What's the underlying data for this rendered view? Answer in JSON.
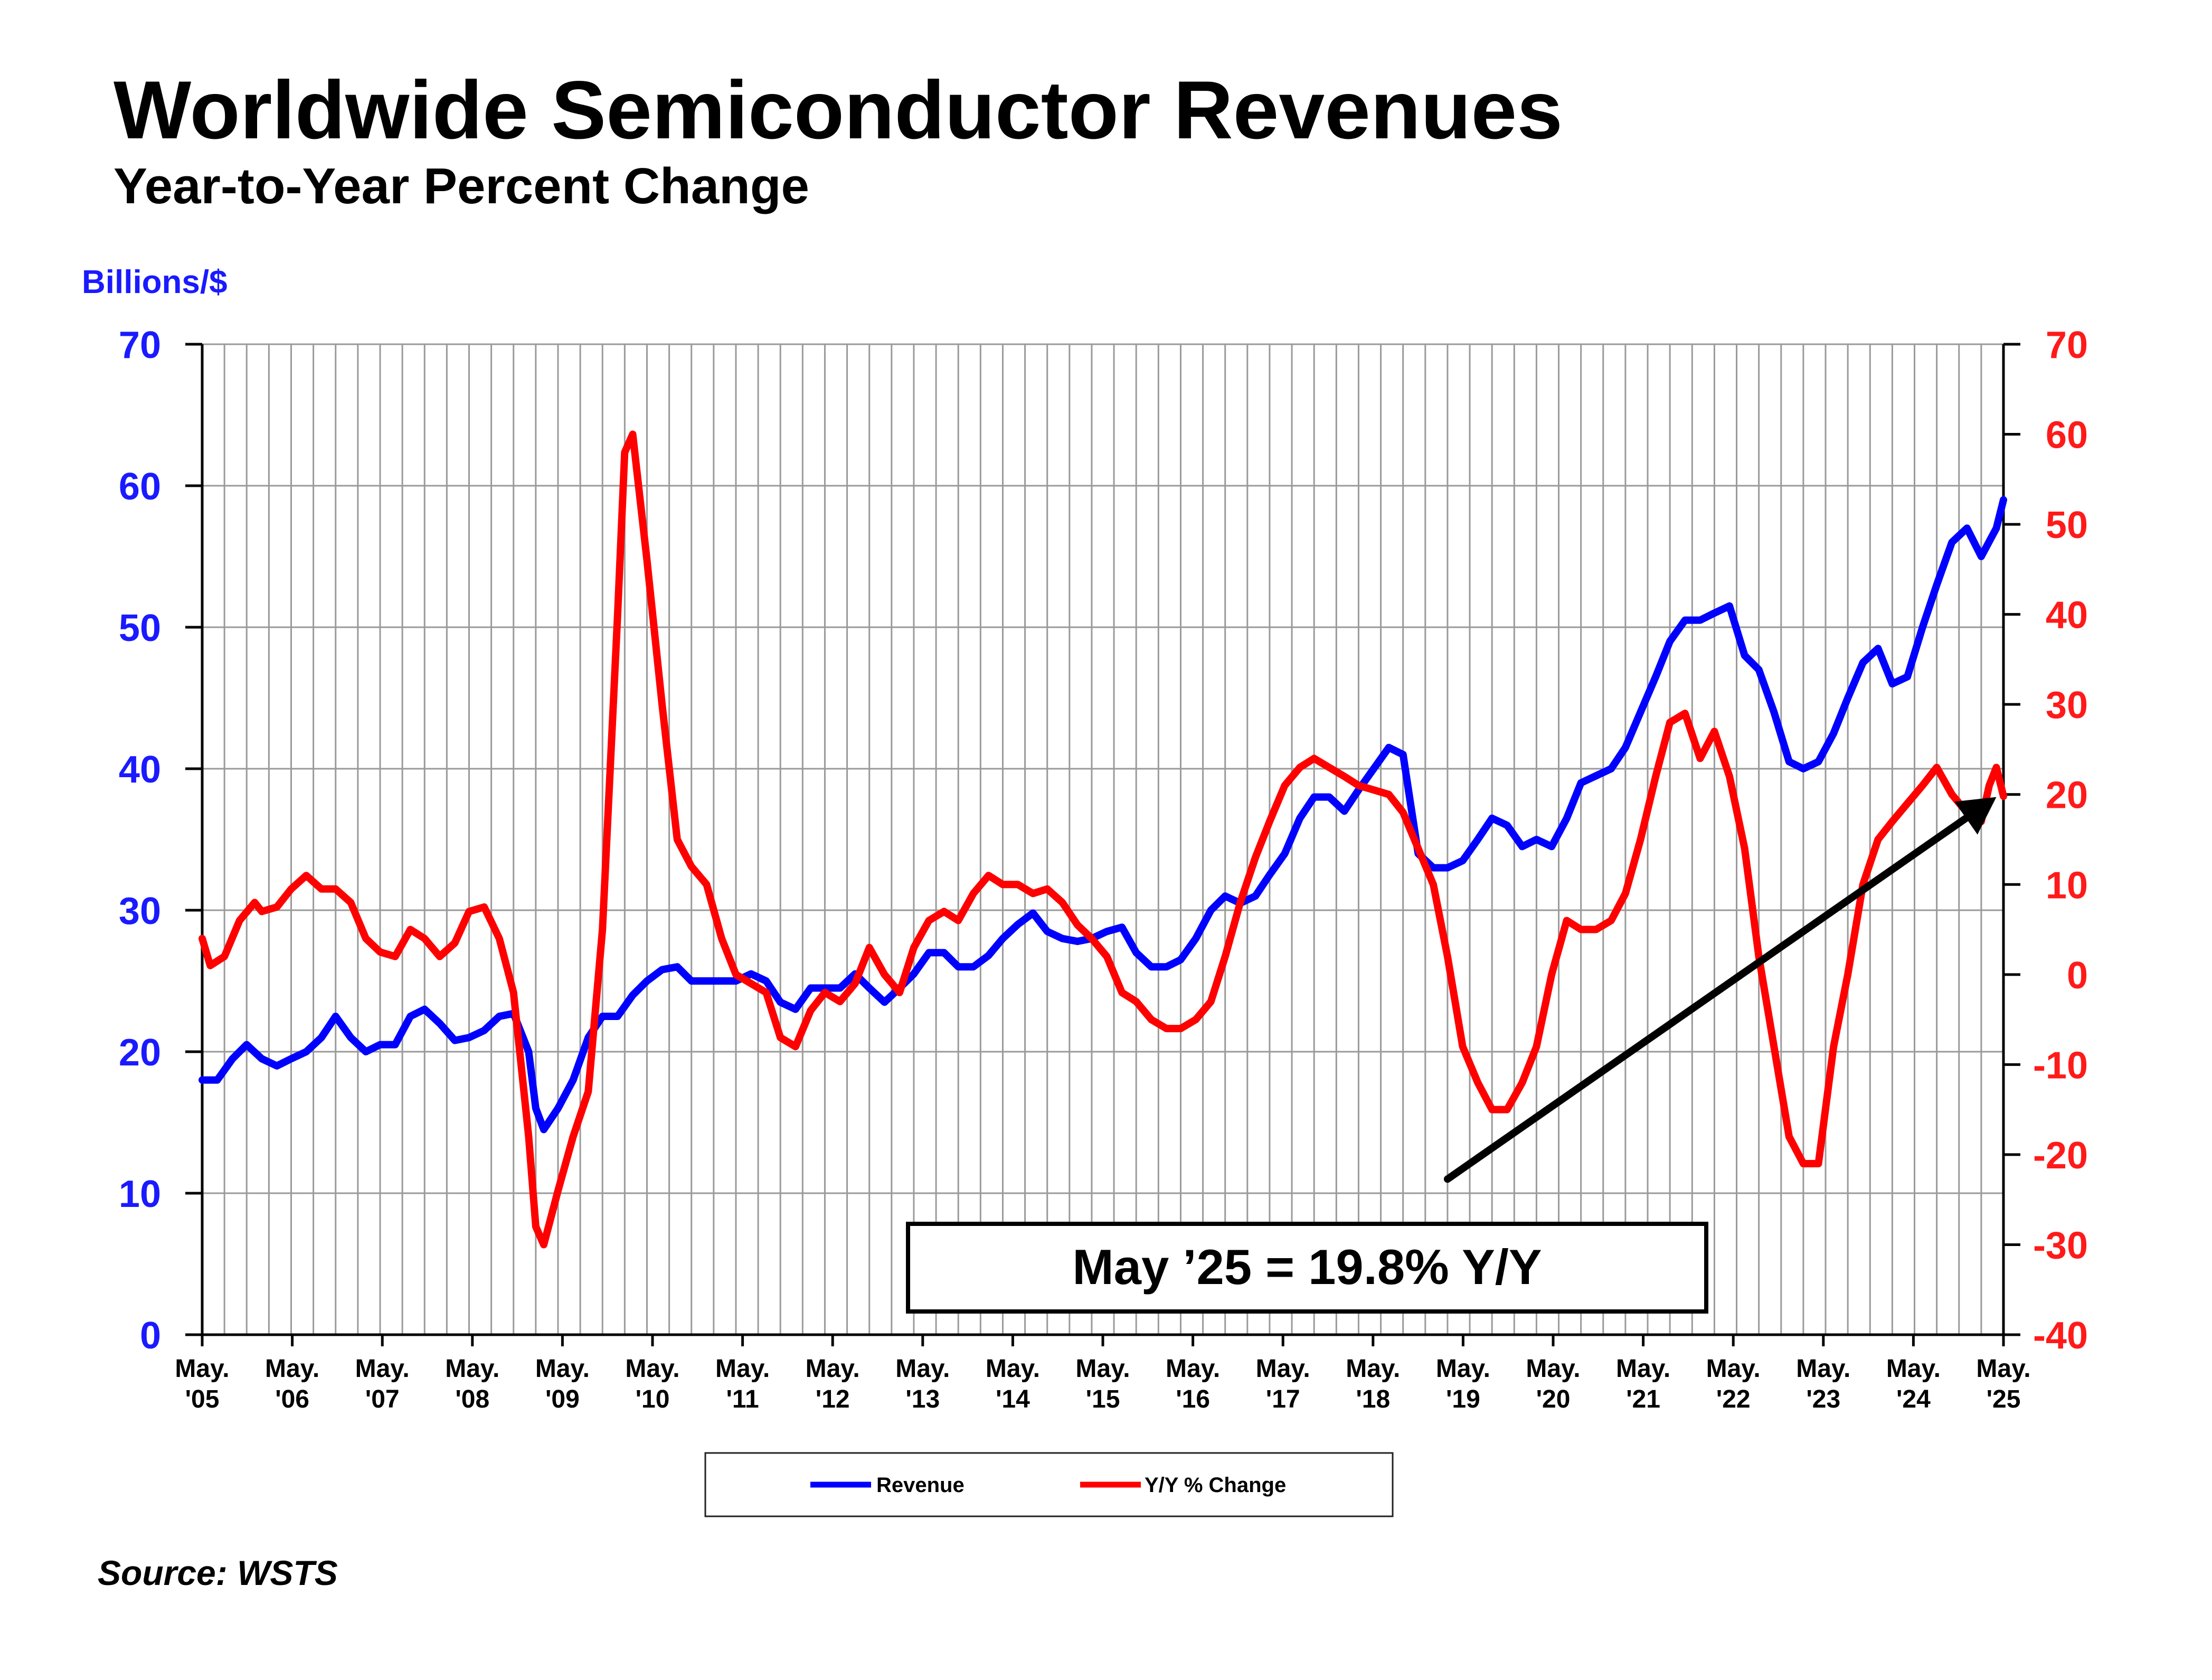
{
  "chart_data": {
    "type": "line",
    "title": "Worldwide Semiconductor Revenues",
    "subtitle": "Year-to-Year Percent Change",
    "ylabel_left": "Billions/$",
    "ylim_left": [
      0,
      70
    ],
    "ylim_right": [
      -40,
      70
    ],
    "yticks_left": [
      "0",
      "10",
      "20",
      "30",
      "40",
      "50",
      "60",
      "70"
    ],
    "yticks_right": [
      "-40",
      "-30",
      "-20",
      "-10",
      "0",
      "10",
      "20",
      "30",
      "40",
      "50",
      "60",
      "70"
    ],
    "grid": true,
    "x_start": "May 2005",
    "x_end": "May 2025",
    "xticks": [
      {
        "month": "May.",
        "year": "'05"
      },
      {
        "month": "May.",
        "year": "'06"
      },
      {
        "month": "May.",
        "year": "'07"
      },
      {
        "month": "May.",
        "year": "'08"
      },
      {
        "month": "May.",
        "year": "'09"
      },
      {
        "month": "May.",
        "year": "'10"
      },
      {
        "month": "May.",
        "year": "'11"
      },
      {
        "month": "May.",
        "year": "'12"
      },
      {
        "month": "May.",
        "year": "'13"
      },
      {
        "month": "May.",
        "year": "'14"
      },
      {
        "month": "May.",
        "year": "'15"
      },
      {
        "month": "May.",
        "year": "'16"
      },
      {
        "month": "May.",
        "year": "'17"
      },
      {
        "month": "May.",
        "year": "'18"
      },
      {
        "month": "May.",
        "year": "'19"
      },
      {
        "month": "May.",
        "year": "'20"
      },
      {
        "month": "May.",
        "year": "'21"
      },
      {
        "month": "May.",
        "year": "'22"
      },
      {
        "month": "May.",
        "year": "'23"
      },
      {
        "month": "May.",
        "year": "'24"
      },
      {
        "month": "May.",
        "year": "'25"
      }
    ],
    "series": [
      {
        "name": "Revenue",
        "axis": "left",
        "color": "#0000ff",
        "points": [
          [
            2005.33,
            18.0
          ],
          [
            2005.5,
            18.0
          ],
          [
            2005.67,
            19.5
          ],
          [
            2005.83,
            20.5
          ],
          [
            2006.0,
            19.5
          ],
          [
            2006.17,
            19.0
          ],
          [
            2006.33,
            19.5
          ],
          [
            2006.5,
            20.0
          ],
          [
            2006.67,
            21.0
          ],
          [
            2006.83,
            22.5
          ],
          [
            2007.0,
            21.0
          ],
          [
            2007.17,
            20.0
          ],
          [
            2007.33,
            20.5
          ],
          [
            2007.5,
            20.5
          ],
          [
            2007.67,
            22.5
          ],
          [
            2007.83,
            23.0
          ],
          [
            2008.0,
            22.0
          ],
          [
            2008.17,
            20.8
          ],
          [
            2008.33,
            21.0
          ],
          [
            2008.5,
            21.5
          ],
          [
            2008.67,
            22.5
          ],
          [
            2008.83,
            22.7
          ],
          [
            2009.0,
            20.0
          ],
          [
            2009.08,
            16.0
          ],
          [
            2009.17,
            14.5
          ],
          [
            2009.33,
            16.0
          ],
          [
            2009.5,
            18.0
          ],
          [
            2009.67,
            21.0
          ],
          [
            2009.83,
            22.5
          ],
          [
            2010.0,
            22.5
          ],
          [
            2010.17,
            24.0
          ],
          [
            2010.33,
            25.0
          ],
          [
            2010.5,
            25.8
          ],
          [
            2010.67,
            26.0
          ],
          [
            2010.83,
            25.0
          ],
          [
            2011.0,
            25.0
          ],
          [
            2011.17,
            25.0
          ],
          [
            2011.33,
            25.0
          ],
          [
            2011.5,
            25.5
          ],
          [
            2011.67,
            25.0
          ],
          [
            2011.83,
            23.5
          ],
          [
            2012.0,
            23.0
          ],
          [
            2012.17,
            24.5
          ],
          [
            2012.33,
            24.5
          ],
          [
            2012.5,
            24.5
          ],
          [
            2012.67,
            25.5
          ],
          [
            2012.83,
            24.5
          ],
          [
            2013.0,
            23.5
          ],
          [
            2013.17,
            24.5
          ],
          [
            2013.33,
            25.5
          ],
          [
            2013.5,
            27.0
          ],
          [
            2013.67,
            27.0
          ],
          [
            2013.83,
            26.0
          ],
          [
            2014.0,
            26.0
          ],
          [
            2014.17,
            26.8
          ],
          [
            2014.33,
            28.0
          ],
          [
            2014.5,
            29.0
          ],
          [
            2014.67,
            29.8
          ],
          [
            2014.83,
            28.5
          ],
          [
            2015.0,
            28.0
          ],
          [
            2015.17,
            27.8
          ],
          [
            2015.33,
            28.0
          ],
          [
            2015.5,
            28.5
          ],
          [
            2015.67,
            28.8
          ],
          [
            2015.83,
            27.0
          ],
          [
            2016.0,
            26.0
          ],
          [
            2016.17,
            26.0
          ],
          [
            2016.33,
            26.5
          ],
          [
            2016.5,
            28.0
          ],
          [
            2016.67,
            30.0
          ],
          [
            2016.83,
            31.0
          ],
          [
            2017.0,
            30.5
          ],
          [
            2017.17,
            31.0
          ],
          [
            2017.33,
            32.5
          ],
          [
            2017.5,
            34.0
          ],
          [
            2017.67,
            36.5
          ],
          [
            2017.83,
            38.0
          ],
          [
            2018.0,
            38.0
          ],
          [
            2018.17,
            37.0
          ],
          [
            2018.33,
            38.5
          ],
          [
            2018.5,
            40.0
          ],
          [
            2018.67,
            41.5
          ],
          [
            2018.83,
            41.0
          ],
          [
            2019.0,
            34.0
          ],
          [
            2019.17,
            33.0
          ],
          [
            2019.33,
            33.0
          ],
          [
            2019.5,
            33.5
          ],
          [
            2019.67,
            35.0
          ],
          [
            2019.83,
            36.5
          ],
          [
            2020.0,
            36.0
          ],
          [
            2020.17,
            34.5
          ],
          [
            2020.33,
            35.0
          ],
          [
            2020.5,
            34.5
          ],
          [
            2020.67,
            36.5
          ],
          [
            2020.83,
            39.0
          ],
          [
            2021.0,
            39.5
          ],
          [
            2021.17,
            40.0
          ],
          [
            2021.33,
            41.5
          ],
          [
            2021.5,
            44.0
          ],
          [
            2021.67,
            46.5
          ],
          [
            2021.83,
            49.0
          ],
          [
            2022.0,
            50.5
          ],
          [
            2022.17,
            50.5
          ],
          [
            2022.33,
            51.0
          ],
          [
            2022.5,
            51.5
          ],
          [
            2022.67,
            48.0
          ],
          [
            2022.83,
            47.0
          ],
          [
            2023.0,
            44.0
          ],
          [
            2023.17,
            40.5
          ],
          [
            2023.33,
            40.0
          ],
          [
            2023.5,
            40.5
          ],
          [
            2023.67,
            42.5
          ],
          [
            2023.83,
            45.0
          ],
          [
            2024.0,
            47.5
          ],
          [
            2024.17,
            48.5
          ],
          [
            2024.33,
            46.0
          ],
          [
            2024.5,
            46.5
          ],
          [
            2024.67,
            50.0
          ],
          [
            2024.83,
            53.0
          ],
          [
            2025.0,
            56.0
          ],
          [
            2025.17,
            57.0
          ],
          [
            2025.33,
            55.0
          ],
          [
            2025.5,
            57.0
          ],
          [
            2025.58,
            59.0
          ]
        ]
      },
      {
        "name": "Y/Y % Change",
        "axis": "right",
        "color": "#ff0000",
        "points": [
          [
            2005.33,
            4.0
          ],
          [
            2005.42,
            1.0
          ],
          [
            2005.58,
            2.0
          ],
          [
            2005.75,
            6.0
          ],
          [
            2005.92,
            8.0
          ],
          [
            2006.0,
            7.0
          ],
          [
            2006.17,
            7.5
          ],
          [
            2006.33,
            9.5
          ],
          [
            2006.5,
            11.0
          ],
          [
            2006.67,
            9.5
          ],
          [
            2006.83,
            9.5
          ],
          [
            2007.0,
            8.0
          ],
          [
            2007.17,
            4.0
          ],
          [
            2007.33,
            2.5
          ],
          [
            2007.5,
            2.0
          ],
          [
            2007.67,
            5.0
          ],
          [
            2007.83,
            4.0
          ],
          [
            2008.0,
            2.0
          ],
          [
            2008.17,
            3.5
          ],
          [
            2008.33,
            7.0
          ],
          [
            2008.5,
            7.5
          ],
          [
            2008.67,
            4.0
          ],
          [
            2008.83,
            -2.0
          ],
          [
            2009.0,
            -18.0
          ],
          [
            2009.08,
            -28.0
          ],
          [
            2009.17,
            -30.0
          ],
          [
            2009.33,
            -24.0
          ],
          [
            2009.5,
            -18.0
          ],
          [
            2009.67,
            -13.0
          ],
          [
            2009.83,
            5.0
          ],
          [
            2010.0,
            40.0
          ],
          [
            2010.08,
            58.0
          ],
          [
            2010.17,
            60.0
          ],
          [
            2010.33,
            46.0
          ],
          [
            2010.5,
            30.0
          ],
          [
            2010.67,
            15.0
          ],
          [
            2010.83,
            12.0
          ],
          [
            2011.0,
            10.0
          ],
          [
            2011.17,
            4.0
          ],
          [
            2011.33,
            0.0
          ],
          [
            2011.5,
            -1.0
          ],
          [
            2011.67,
            -2.0
          ],
          [
            2011.83,
            -7.0
          ],
          [
            2012.0,
            -8.0
          ],
          [
            2012.17,
            -4.0
          ],
          [
            2012.33,
            -2.0
          ],
          [
            2012.5,
            -3.0
          ],
          [
            2012.67,
            -1.0
          ],
          [
            2012.83,
            3.0
          ],
          [
            2013.0,
            0.0
          ],
          [
            2013.17,
            -2.0
          ],
          [
            2013.33,
            3.0
          ],
          [
            2013.5,
            6.0
          ],
          [
            2013.67,
            7.0
          ],
          [
            2013.83,
            6.0
          ],
          [
            2014.0,
            9.0
          ],
          [
            2014.17,
            11.0
          ],
          [
            2014.33,
            10.0
          ],
          [
            2014.5,
            10.0
          ],
          [
            2014.67,
            9.0
          ],
          [
            2014.83,
            9.5
          ],
          [
            2015.0,
            8.0
          ],
          [
            2015.17,
            5.5
          ],
          [
            2015.33,
            4.0
          ],
          [
            2015.5,
            2.0
          ],
          [
            2015.67,
            -2.0
          ],
          [
            2015.83,
            -3.0
          ],
          [
            2016.0,
            -5.0
          ],
          [
            2016.17,
            -6.0
          ],
          [
            2016.33,
            -6.0
          ],
          [
            2016.5,
            -5.0
          ],
          [
            2016.67,
            -3.0
          ],
          [
            2016.83,
            2.0
          ],
          [
            2017.0,
            8.0
          ],
          [
            2017.17,
            13.0
          ],
          [
            2017.33,
            17.0
          ],
          [
            2017.5,
            21.0
          ],
          [
            2017.67,
            23.0
          ],
          [
            2017.83,
            24.0
          ],
          [
            2018.0,
            23.0
          ],
          [
            2018.17,
            22.0
          ],
          [
            2018.33,
            21.0
          ],
          [
            2018.5,
            20.5
          ],
          [
            2018.67,
            20.0
          ],
          [
            2018.83,
            18.0
          ],
          [
            2019.0,
            14.0
          ],
          [
            2019.17,
            10.0
          ],
          [
            2019.33,
            2.0
          ],
          [
            2019.5,
            -8.0
          ],
          [
            2019.67,
            -12.0
          ],
          [
            2019.83,
            -15.0
          ],
          [
            2020.0,
            -15.0
          ],
          [
            2020.17,
            -12.0
          ],
          [
            2020.33,
            -8.0
          ],
          [
            2020.5,
            0.0
          ],
          [
            2020.67,
            6.0
          ],
          [
            2020.83,
            5.0
          ],
          [
            2021.0,
            5.0
          ],
          [
            2021.17,
            6.0
          ],
          [
            2021.33,
            9.0
          ],
          [
            2021.5,
            15.0
          ],
          [
            2021.67,
            22.0
          ],
          [
            2021.83,
            28.0
          ],
          [
            2022.0,
            29.0
          ],
          [
            2022.17,
            24.0
          ],
          [
            2022.33,
            27.0
          ],
          [
            2022.5,
            22.0
          ],
          [
            2022.67,
            14.0
          ],
          [
            2022.83,
            2.0
          ],
          [
            2023.0,
            -8.0
          ],
          [
            2023.17,
            -18.0
          ],
          [
            2023.33,
            -21.0
          ],
          [
            2023.5,
            -21.0
          ],
          [
            2023.67,
            -8.0
          ],
          [
            2023.83,
            0.0
          ],
          [
            2024.0,
            10.0
          ],
          [
            2024.17,
            15.0
          ],
          [
            2024.33,
            17.0
          ],
          [
            2024.5,
            19.0
          ],
          [
            2024.67,
            21.0
          ],
          [
            2024.83,
            23.0
          ],
          [
            2025.0,
            20.0
          ],
          [
            2025.17,
            18.0
          ],
          [
            2025.33,
            17.0
          ],
          [
            2025.42,
            21.0
          ],
          [
            2025.5,
            23.0
          ],
          [
            2025.58,
            19.8
          ]
        ]
      }
    ],
    "legend": {
      "placement": "bottom-center",
      "entries": [
        "Revenue",
        "Y/Y % Change"
      ]
    },
    "annotations": [
      {
        "type": "text-box",
        "text": "May ’25 = 19.8% Y/Y"
      },
      {
        "type": "arrow",
        "color": "#000000",
        "from_x": 2019.33,
        "from_y_left": 11.0,
        "to_x": 2025.5,
        "to_y_left": 38.0
      }
    ],
    "source": "Source: WSTS"
  }
}
